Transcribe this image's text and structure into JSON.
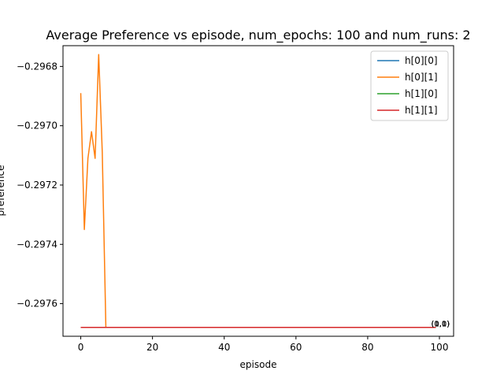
{
  "chart_data": {
    "type": "line",
    "title": "Average Preference vs episode, num_epochs: 100 and num_runs: 2",
    "xlabel": "episode",
    "ylabel": "preference",
    "xlim": [
      -4.95,
      103.95
    ],
    "ylim": [
      -0.29771,
      -0.29673
    ],
    "xticks": [
      0,
      20,
      40,
      60,
      80,
      100
    ],
    "yticks": [
      -0.2976,
      -0.2974,
      -0.2972,
      -0.297,
      -0.2968
    ],
    "grid": false,
    "legend_position": "top-right",
    "series": [
      {
        "name": "h[0][0]",
        "color": "#1f77b4",
        "x": [
          0,
          99
        ],
        "y": [
          -0.29768,
          -0.29768
        ]
      },
      {
        "name": "h[0][1]",
        "color": "#ff7f0e",
        "x": [
          0,
          1,
          2,
          3,
          4,
          5,
          6,
          7,
          99
        ],
        "y": [
          -0.29689,
          -0.29735,
          -0.29711,
          -0.29702,
          -0.29711,
          -0.29676,
          -0.29709,
          -0.29768,
          -0.29768
        ]
      },
      {
        "name": "h[1][0]",
        "color": "#2ca02c",
        "x": [
          0,
          99
        ],
        "y": [
          -0.29768,
          -0.29768
        ]
      },
      {
        "name": "h[1][1]",
        "color": "#d62728",
        "x": [
          0,
          99
        ],
        "y": [
          -0.29768,
          -0.29768
        ]
      }
    ],
    "annotations": [
      {
        "text": "(0,0)",
        "x": 99,
        "y": -0.29768
      },
      {
        "text": "(0,1)",
        "x": 99,
        "y": -0.29768
      },
      {
        "text": "(1,0)",
        "x": 99,
        "y": -0.29768
      },
      {
        "text": "(1,1)",
        "x": 99,
        "y": -0.29768
      }
    ]
  }
}
